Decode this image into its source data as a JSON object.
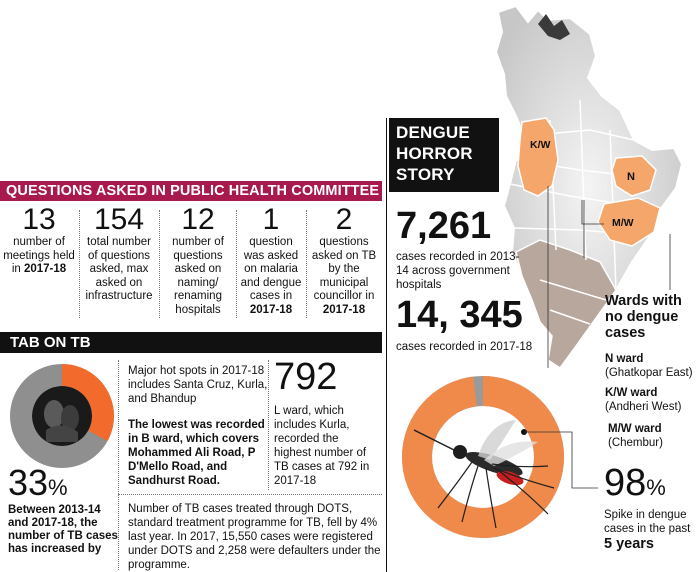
{
  "questions": {
    "banner": "QUESTIONS ASKED IN PUBLIC HEALTH COMMITTEE",
    "items": [
      {
        "num": "13",
        "text": "number of meetings held in",
        "bold": "2017-18"
      },
      {
        "num": "154",
        "text": "total number of questions asked, max asked on infrastructure",
        "bold": ""
      },
      {
        "num": "12",
        "text": "number of questions asked on naming/ renaming hospitals",
        "bold": ""
      },
      {
        "num": "1",
        "text": "question was asked on malaria and dengue cases in",
        "bold": "2017-18"
      },
      {
        "num": "2",
        "text": "questions asked on TB by the municipal councillor in",
        "bold": "2017-18"
      }
    ]
  },
  "tb": {
    "banner": "TAB ON TB",
    "donut_fraction": 0.33,
    "colors": {
      "accent": "#f26b2c",
      "ring": "#8f8f8f"
    },
    "pct_value": "33",
    "pct_sign": "%",
    "increase_text": "Between 2013-14 and 2017-18, the number of TB cases has increased by",
    "hotspots": "Major hot spots in 2017-18 includes Santa Cruz, Kurla, and Bhandup",
    "lowest": "The lowest was recorded in B ward, which covers Mohammed Ali Road, P D'Mello Road, and Sandhurst Road.",
    "l_ward_num": "792",
    "l_ward_text": "L ward, which includes Kurla, recorded the highest number of TB cases at 792 in 2017-18",
    "dots_text": "Number of TB cases treated through DOTS, standard treatment programme for TB, fell by 4% last year. In 2017, 15,550 cases were registered under DOTS and 2,258 were defaulters under the programme."
  },
  "dengue": {
    "title_line1": "DENGUE",
    "title_line2": "HORROR",
    "title_line3": "STORY",
    "num1": "7,261",
    "text1": "cases recorded in 2013-14 across government hospitals",
    "num2": "14, 345",
    "text2": "cases recorded in 2017-18",
    "map_labels": [
      "K/W",
      "N",
      "M/W"
    ],
    "wards_heading": "Wards with no dengue cases",
    "wards": [
      {
        "name": "N ward",
        "area": "(Ghatkopar East)"
      },
      {
        "name": "K/W ward",
        "area": "(Andheri West)"
      },
      {
        "name": "M/W ward",
        "area": "(Chembur)"
      }
    ],
    "donut_fraction": 0.98,
    "colors": {
      "accent": "#f08a4b",
      "rest": "#9a9a9a",
      "map_highlight": "#f4a66b"
    },
    "pct_value": "98",
    "pct_sign": "%",
    "spike_text": "Spike in dengue cases in the past",
    "spike_years": "5 years"
  }
}
